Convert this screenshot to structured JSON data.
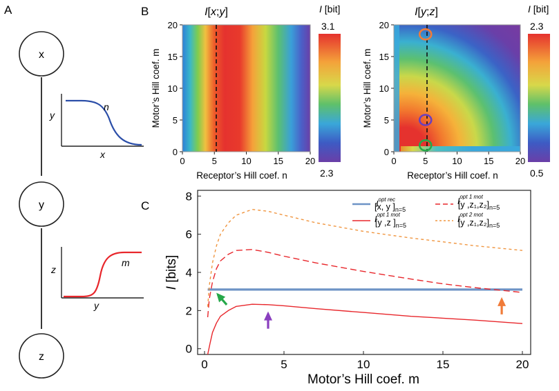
{
  "panel_labels": {
    "a": "A",
    "b": "B",
    "c": "C"
  },
  "network": {
    "nodes": [
      "x",
      "y",
      "z"
    ],
    "inset_top": {
      "ylabel": "y",
      "xlabel": "x",
      "curve_label": "n",
      "color": "#2b4ea8"
    },
    "inset_bottom": {
      "ylabel": "z",
      "xlabel": "y",
      "curve_label": "m",
      "color": "#e8262b"
    }
  },
  "chart_data": [
    {
      "type": "heatmap",
      "title": {
        "I": "I",
        "open": "[",
        "v1": "x",
        "sep": ";",
        "v2": "y",
        "close": "]"
      },
      "colorbar_title": {
        "I": "I",
        "unit": " [bit]"
      },
      "colorbar_max": "3.1",
      "colorbar_min": "2.3",
      "xlabel": "Receptor’s Hill coef. n",
      "ylabel": "Motor’s Hill coef. m",
      "xlim": [
        0,
        20
      ],
      "ylim": [
        0,
        20
      ],
      "xticks": [
        "0",
        "5",
        "10",
        "15",
        "20"
      ],
      "yticks": [
        "0",
        "5",
        "10",
        "15",
        "20"
      ],
      "dashed_line_n": 5,
      "description": "I[x;y] depends only on n; maximum near n=7"
    },
    {
      "type": "heatmap",
      "title": {
        "I": "I",
        "open": "[",
        "v1": "y",
        "sep": ";",
        "v2": "z",
        "close": "]"
      },
      "colorbar_title": {
        "I": "I",
        "unit": " [bit]"
      },
      "colorbar_max": "2.3",
      "colorbar_min": "0.5",
      "xlabel": "Receptor’s Hill coef. n",
      "ylabel": "Motor’s Hill coef. m",
      "xlim": [
        0,
        20
      ],
      "ylim": [
        0,
        20
      ],
      "xticks": [
        "0",
        "5",
        "10",
        "15",
        "20"
      ],
      "yticks": [
        "0",
        "5",
        "10",
        "15",
        "20"
      ],
      "dashed_line_n": 5,
      "markers": [
        {
          "n": 5,
          "m": 18.5,
          "color": "#f07b39"
        },
        {
          "n": 5,
          "m": 5.0,
          "color": "#6a3fbf"
        },
        {
          "n": 5,
          "m": 1.0,
          "color": "#26a84a"
        }
      ]
    },
    {
      "type": "line",
      "xlabel": "Motor’s Hill coef. m",
      "ylabel": {
        "I": "I",
        "unit": " [bits]"
      },
      "xlim": [
        0,
        20
      ],
      "ylim": [
        -0.3,
        8.3
      ],
      "xticks": [
        "0",
        "5",
        "10",
        "15",
        "20"
      ],
      "yticks": [
        "0",
        "2",
        "4",
        "6",
        "8"
      ],
      "legend_position": "top-right",
      "series": [
        {
          "key": "xy",
          "color": "#6d93c6",
          "dash": "solid",
          "width": 3.2,
          "legend": {
            "sup": "opt rec",
            "body": "[x, y ]",
            "sub": "n=5"
          },
          "x": [
            0.2,
            20
          ],
          "y": [
            3.1,
            3.1
          ]
        },
        {
          "key": "yz",
          "color": "#e8262b",
          "dash": "solid",
          "width": 1.4,
          "legend": {
            "sup": "opt 1 mot",
            "body": "[y ,z ]",
            "sub": "n=5"
          },
          "x": [
            0.2,
            0.35,
            0.5,
            0.75,
            1,
            1.5,
            2,
            3,
            4,
            5,
            7,
            10,
            13,
            15,
            17,
            20
          ],
          "y": [
            -0.4,
            0.3,
            0.85,
            1.35,
            1.7,
            2.0,
            2.22,
            2.33,
            2.31,
            2.25,
            2.1,
            1.9,
            1.7,
            1.6,
            1.5,
            1.32
          ]
        },
        {
          "key": "yz1z2_1",
          "color": "#e8262b",
          "dash": "long",
          "width": 1.4,
          "legend": {
            "sup": "opt 1 mot",
            "body": "[y ,z₁,z₂]",
            "sub": "n=5"
          },
          "x": [
            0.2,
            0.3,
            0.5,
            0.75,
            1,
            1.5,
            2,
            3,
            4,
            5,
            7,
            10,
            13,
            15,
            17,
            20
          ],
          "y": [
            1.65,
            2.6,
            3.5,
            4.2,
            4.6,
            4.95,
            5.15,
            5.2,
            5.05,
            4.85,
            4.5,
            4.05,
            3.65,
            3.4,
            3.2,
            2.95
          ]
        },
        {
          "key": "yz1z2_2",
          "color": "#f0953f",
          "dash": "short",
          "width": 1.4,
          "legend": {
            "sup": "opt 2 mot",
            "body": "[y ,z₁,z₂]",
            "sub": "n=5"
          },
          "x": [
            0.2,
            0.3,
            0.5,
            0.75,
            1,
            1.5,
            2,
            3,
            4,
            5,
            7,
            10,
            13,
            15,
            17,
            20
          ],
          "y": [
            2.2,
            3.3,
            4.5,
            5.4,
            6.0,
            6.6,
            7.0,
            7.3,
            7.2,
            7.0,
            6.6,
            6.15,
            5.8,
            5.6,
            5.4,
            5.15
          ]
        }
      ],
      "arrows": [
        {
          "m": 0.7,
          "I": 3.1,
          "color": "#26a84a"
        },
        {
          "m": 4,
          "I": 2.35,
          "color": "#8a3fbf"
        },
        {
          "m": 18.7,
          "I": 3.1,
          "color": "#f07b39"
        }
      ]
    }
  ]
}
